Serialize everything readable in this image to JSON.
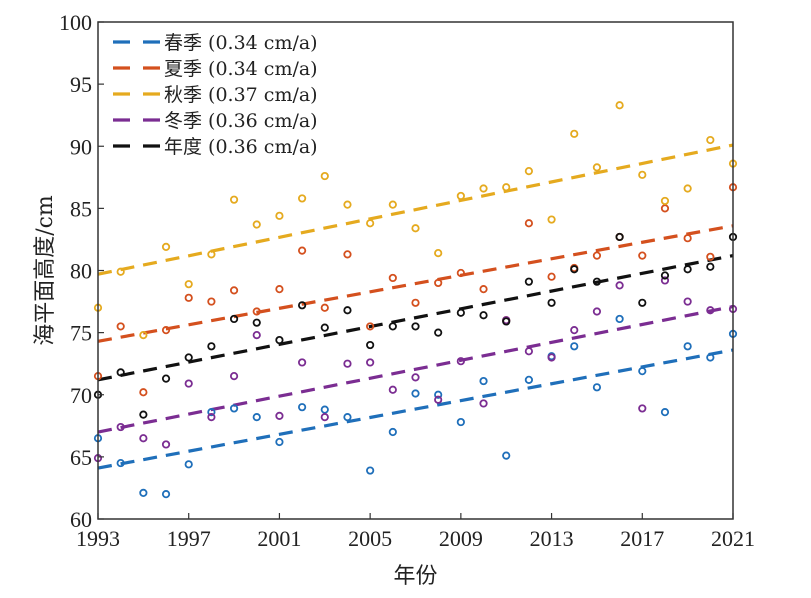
{
  "chart_data": {
    "type": "scatter",
    "title": "",
    "xlabel": "年份",
    "ylabel": "海平面高度/cm",
    "xlim": [
      1993,
      2021
    ],
    "ylim": [
      60,
      100
    ],
    "xticks": [
      1993,
      1997,
      2001,
      2005,
      2009,
      2013,
      2017,
      2021
    ],
    "yticks": [
      60,
      65,
      70,
      75,
      80,
      85,
      90,
      95,
      100
    ],
    "grid": false,
    "legend_position": "top-left",
    "x": [
      1993,
      1994,
      1995,
      1996,
      1997,
      1998,
      1999,
      2000,
      2001,
      2002,
      2003,
      2004,
      2005,
      2006,
      2007,
      2008,
      2009,
      2010,
      2011,
      2012,
      2013,
      2014,
      2015,
      2016,
      2017,
      2018,
      2019,
      2020,
      2021
    ],
    "series": [
      {
        "name": "春季",
        "label": "春季 (0.34 cm/a)",
        "rate": "0.34 cm/a",
        "color": "#1f6fba",
        "values": [
          66.5,
          64.5,
          62.1,
          62.0,
          64.4,
          68.6,
          68.9,
          68.2,
          66.2,
          69.0,
          68.8,
          68.2,
          63.9,
          67.0,
          70.1,
          70.0,
          67.8,
          71.1,
          65.1,
          71.2,
          73.1,
          73.9,
          70.6,
          76.1,
          71.9,
          68.6,
          73.9,
          73.0,
          74.9
        ],
        "trend": [
          64.1,
          73.6
        ]
      },
      {
        "name": "夏季",
        "label": "夏季 (0.34 cm/a)",
        "rate": "0.34 cm/a",
        "color": "#d4501e",
        "values": [
          71.5,
          75.5,
          70.2,
          75.2,
          77.8,
          77.5,
          78.4,
          76.7,
          78.5,
          81.6,
          77.0,
          81.3,
          75.5,
          79.4,
          77.4,
          79.0,
          79.8,
          78.5,
          76.0,
          83.8,
          79.5,
          80.2,
          81.2,
          82.7,
          81.2,
          85.0,
          82.6,
          81.1,
          86.7
        ],
        "trend": [
          74.3,
          83.6
        ]
      },
      {
        "name": "秋季",
        "label": "秋季 (0.37 cm/a)",
        "rate": "0.37 cm/a",
        "color": "#e5aa1f",
        "values": [
          77.0,
          79.9,
          74.8,
          81.9,
          78.9,
          81.3,
          85.7,
          83.7,
          84.4,
          85.8,
          87.6,
          85.3,
          83.8,
          85.3,
          83.4,
          81.4,
          86.0,
          86.6,
          86.7,
          88.0,
          84.1,
          91.0,
          88.3,
          93.3,
          87.7,
          85.6,
          86.6,
          90.5,
          88.6
        ],
        "trend": [
          79.7,
          90.1
        ]
      },
      {
        "name": "冬季",
        "label": "冬季 (0.36 cm/a)",
        "rate": "0.36 cm/a",
        "color": "#7b2d92",
        "values": [
          64.9,
          67.4,
          66.5,
          66.0,
          70.9,
          68.2,
          71.5,
          74.8,
          68.3,
          72.6,
          68.2,
          72.5,
          72.6,
          70.4,
          71.4,
          69.6,
          72.7,
          69.3,
          76.0,
          73.5,
          73.0,
          75.2,
          76.7,
          78.8,
          68.9,
          79.2,
          77.5,
          76.8,
          76.9
        ],
        "trend": [
          67.0,
          77.1
        ]
      },
      {
        "name": "年度",
        "label": "年度 (0.36 cm/a)",
        "rate": "0.36 cm/a",
        "color": "#111111",
        "values": [
          70.0,
          71.8,
          68.4,
          71.3,
          73.0,
          73.9,
          76.1,
          75.8,
          74.4,
          77.2,
          75.4,
          76.8,
          74.0,
          75.5,
          75.5,
          75.0,
          76.6,
          76.4,
          75.9,
          79.1,
          77.4,
          80.1,
          79.1,
          82.7,
          77.4,
          79.6,
          80.1,
          80.3,
          82.7
        ],
        "trend": [
          71.2,
          81.2
        ]
      }
    ]
  }
}
